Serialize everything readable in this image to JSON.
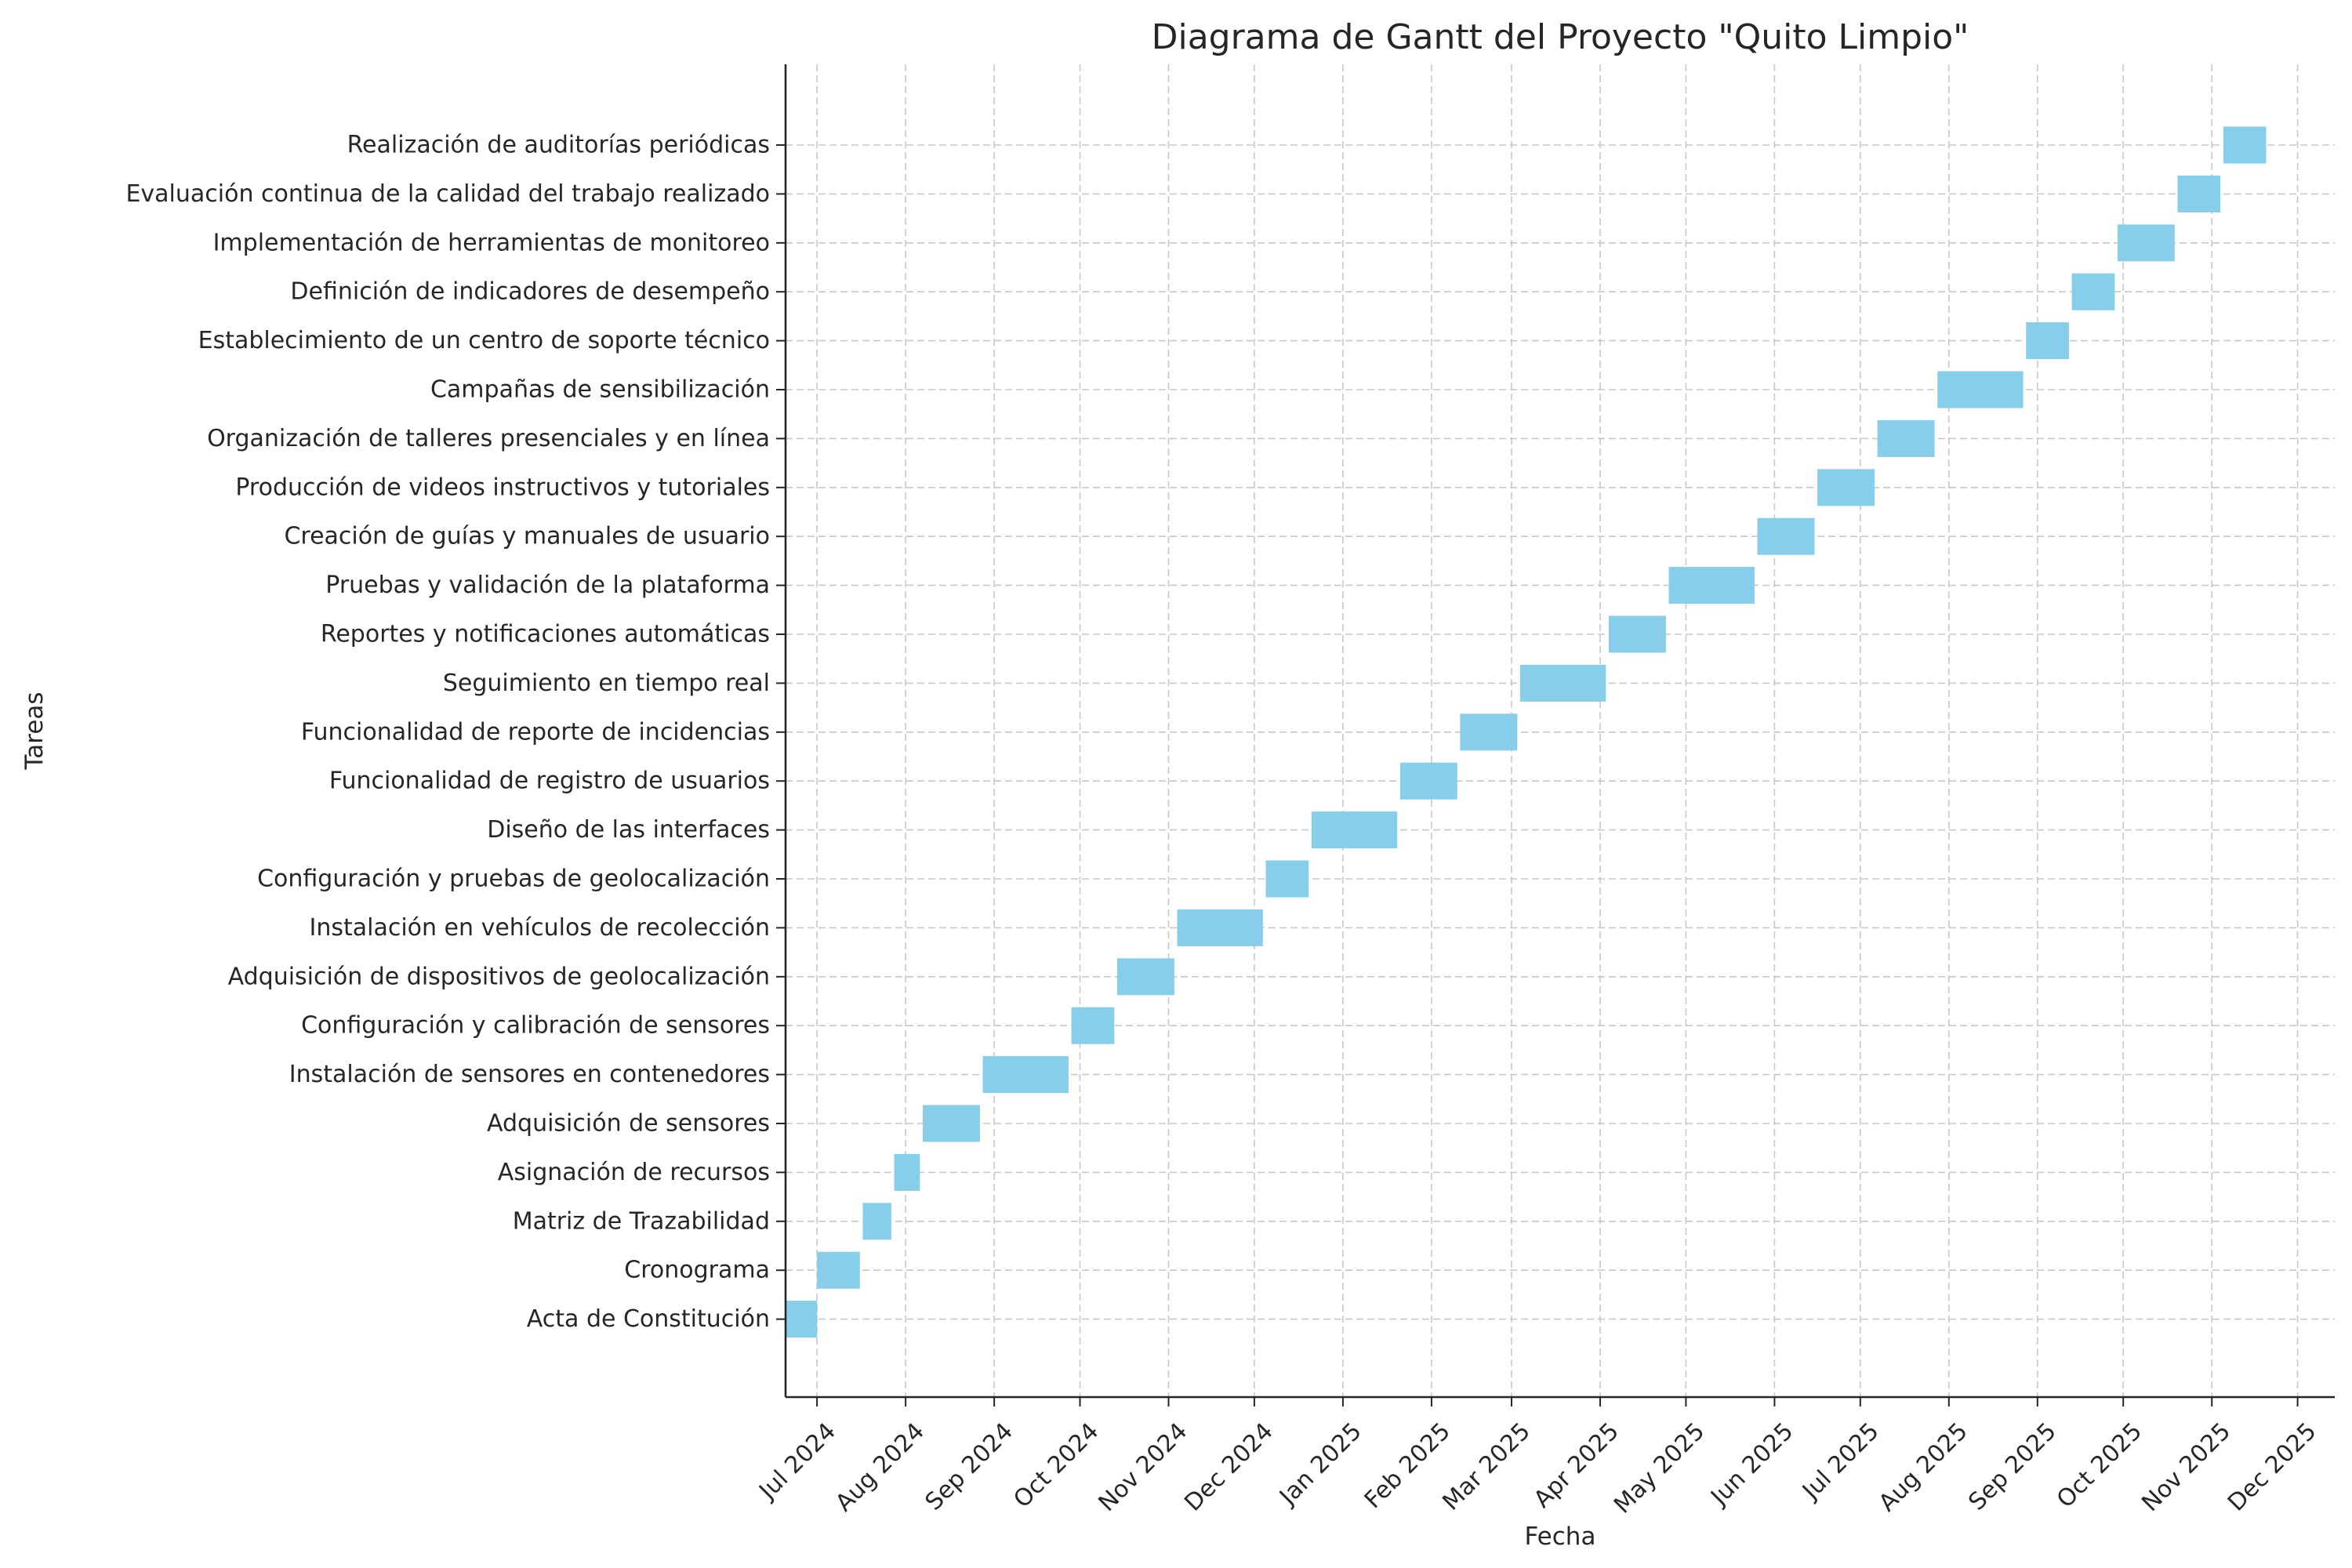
{
  "chart_data": {
    "type": "gantt",
    "title": "Diagrama de Gantt del Proyecto \"Quito Limpio\"",
    "xlabel": "Fecha",
    "ylabel": "Tareas",
    "xlim": [
      "2024-06-20",
      "2025-12-14"
    ],
    "grid": true,
    "bar_color": "#87ceeb",
    "x_ticks": [
      {
        "date": "2024-07-01",
        "label": "Jul 2024"
      },
      {
        "date": "2024-08-01",
        "label": "Aug 2024"
      },
      {
        "date": "2024-09-01",
        "label": "Sep 2024"
      },
      {
        "date": "2024-10-01",
        "label": "Oct 2024"
      },
      {
        "date": "2024-11-01",
        "label": "Nov 2024"
      },
      {
        "date": "2024-12-01",
        "label": "Dec 2024"
      },
      {
        "date": "2025-01-01",
        "label": "Jan 2025"
      },
      {
        "date": "2025-02-01",
        "label": "Feb 2025"
      },
      {
        "date": "2025-03-01",
        "label": "Mar 2025"
      },
      {
        "date": "2025-04-01",
        "label": "Apr 2025"
      },
      {
        "date": "2025-05-01",
        "label": "May 2025"
      },
      {
        "date": "2025-06-01",
        "label": "Jun 2025"
      },
      {
        "date": "2025-07-01",
        "label": "Jul 2025"
      },
      {
        "date": "2025-08-01",
        "label": "Aug 2025"
      },
      {
        "date": "2025-09-01",
        "label": "Sep 2025"
      },
      {
        "date": "2025-10-01",
        "label": "Oct 2025"
      },
      {
        "date": "2025-11-01",
        "label": "Nov 2025"
      },
      {
        "date": "2025-12-01",
        "label": "Dec 2025"
      }
    ],
    "tasks": [
      {
        "name": "Acta de Constitución",
        "start": "2024-06-20",
        "end": "2024-07-01"
      },
      {
        "name": "Cronograma",
        "start": "2024-07-01",
        "end": "2024-07-16"
      },
      {
        "name": "Matriz de Trazabilidad",
        "start": "2024-07-17",
        "end": "2024-07-27"
      },
      {
        "name": "Asignación de recursos",
        "start": "2024-07-28",
        "end": "2024-08-06"
      },
      {
        "name": "Adquisición de sensores",
        "start": "2024-08-07",
        "end": "2024-08-27"
      },
      {
        "name": "Instalación de sensores en contenedores",
        "start": "2024-08-28",
        "end": "2024-09-27"
      },
      {
        "name": "Configuración y calibración de sensores",
        "start": "2024-09-28",
        "end": "2024-10-13"
      },
      {
        "name": "Adquisición de dispositivos de geolocalización",
        "start": "2024-10-14",
        "end": "2024-11-03"
      },
      {
        "name": "Instalación en vehículos de recolección",
        "start": "2024-11-04",
        "end": "2024-12-04"
      },
      {
        "name": "Configuración y pruebas de geolocalización",
        "start": "2024-12-05",
        "end": "2024-12-20"
      },
      {
        "name": "Diseño de las interfaces",
        "start": "2024-12-21",
        "end": "2025-01-20"
      },
      {
        "name": "Funcionalidad de registro de usuarios",
        "start": "2025-01-21",
        "end": "2025-02-10"
      },
      {
        "name": "Funcionalidad de reporte de incidencias",
        "start": "2025-02-11",
        "end": "2025-03-03"
      },
      {
        "name": "Seguimiento en tiempo real",
        "start": "2025-03-04",
        "end": "2025-04-03"
      },
      {
        "name": "Reportes y notificaciones automáticas",
        "start": "2025-04-04",
        "end": "2025-04-24"
      },
      {
        "name": "Pruebas y validación de la plataforma",
        "start": "2025-04-25",
        "end": "2025-05-25"
      },
      {
        "name": "Creación de guías y manuales de usuario",
        "start": "2025-05-26",
        "end": "2025-06-15"
      },
      {
        "name": "Producción de videos instructivos y tutoriales",
        "start": "2025-06-16",
        "end": "2025-07-06"
      },
      {
        "name": "Organización de talleres presenciales y en línea",
        "start": "2025-07-07",
        "end": "2025-07-27"
      },
      {
        "name": "Campañas de sensibilización",
        "start": "2025-07-28",
        "end": "2025-08-27"
      },
      {
        "name": "Establecimiento de un centro de soporte técnico",
        "start": "2025-08-28",
        "end": "2025-09-12"
      },
      {
        "name": "Definición de indicadores de desempeño",
        "start": "2025-09-13",
        "end": "2025-09-28"
      },
      {
        "name": "Implementación de herramientas de monitoreo",
        "start": "2025-09-29",
        "end": "2025-10-19"
      },
      {
        "name": "Evaluación continua de la calidad del trabajo realizado",
        "start": "2025-10-20",
        "end": "2025-11-04"
      },
      {
        "name": "Realización de auditorías periódicas",
        "start": "2025-11-05",
        "end": "2025-11-20"
      }
    ]
  }
}
